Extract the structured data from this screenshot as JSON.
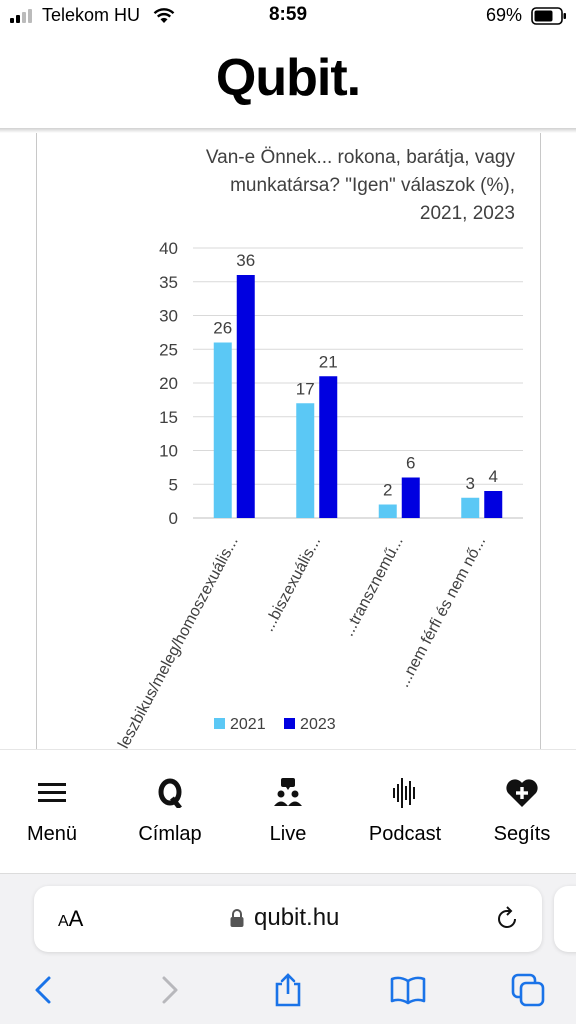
{
  "status_bar": {
    "carrier": "Telekom HU",
    "time": "8:59",
    "battery": "69%"
  },
  "header": {
    "logo": "Qubit."
  },
  "chart_data": {
    "type": "bar",
    "title_lines": [
      "Van-e Önnek... rokona, barátja, vagy",
      "munkatársa? \"Igen\" válaszok (%),",
      "2021, 2023"
    ],
    "categories": [
      "...leszbikus/meleg/homoszexuális...",
      "...biszexuális...",
      "...transznemű...",
      "...nem férfi és nem nő..."
    ],
    "series": [
      {
        "name": "2021",
        "values": [
          26,
          17,
          2,
          3
        ],
        "color": "#5bc8f5"
      },
      {
        "name": "2023",
        "values": [
          36,
          21,
          6,
          4
        ],
        "color": "#0000e0"
      }
    ],
    "y_ticks": [
      0,
      5,
      10,
      15,
      20,
      25,
      30,
      35,
      40
    ],
    "ylim": [
      0,
      40
    ],
    "grid": true,
    "legend_position": "bottom"
  },
  "bottom_nav": [
    {
      "label": "Menü",
      "icon": "menu-icon"
    },
    {
      "label": "Címlap",
      "icon": "q-logo-icon"
    },
    {
      "label": "Live",
      "icon": "live-chat-icon"
    },
    {
      "label": "Podcast",
      "icon": "podcast-icon"
    },
    {
      "label": "Segíts",
      "icon": "heart-plus-icon"
    }
  ],
  "safari": {
    "aa_label": "AA",
    "url": "qubit.hu"
  }
}
